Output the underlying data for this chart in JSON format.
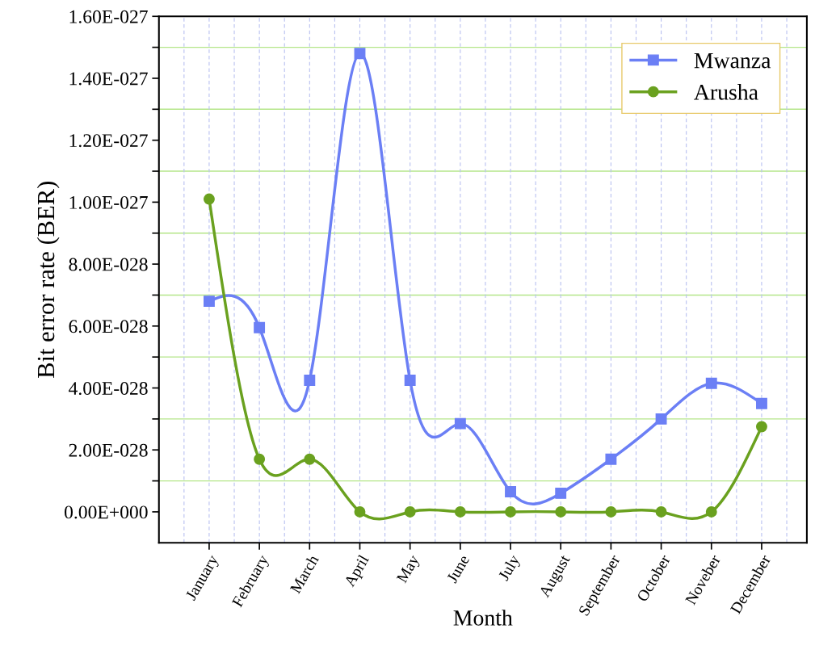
{
  "chart_data": {
    "type": "line",
    "xlabel": "Month",
    "ylabel": "Bit error rate (BER)",
    "categories": [
      "January",
      "February",
      "March",
      "April",
      "May",
      "June",
      "July",
      "August",
      "September",
      "October",
      "Noveber",
      "December"
    ],
    "series": [
      {
        "name": "Mwanza",
        "color": "#6b7ff5",
        "marker": "square",
        "values": [
          6.8e-28,
          5.95e-28,
          4.25e-28,
          1.48e-27,
          4.25e-28,
          2.85e-28,
          6.5e-29,
          6e-29,
          1.7e-28,
          3e-28,
          4.15e-28,
          3.5e-28
        ]
      },
      {
        "name": "Arusha",
        "color": "#6aa11f",
        "marker": "circle",
        "values": [
          1.01e-27,
          1.7e-28,
          1.7e-28,
          0,
          0,
          0,
          0,
          0,
          0,
          0,
          0,
          2.75e-28
        ]
      }
    ],
    "ylim": [
      -1e-28,
      1.6e-27
    ],
    "yticks": [
      {
        "value": 0,
        "label": "0.00E+000"
      },
      {
        "value": 1e-28,
        "label": null
      },
      {
        "value": 2e-28,
        "label": "2.00E-028"
      },
      {
        "value": 3e-28,
        "label": null
      },
      {
        "value": 4e-28,
        "label": "4.00E-028"
      },
      {
        "value": 5e-28,
        "label": null
      },
      {
        "value": 6e-28,
        "label": "6.00E-028"
      },
      {
        "value": 7e-28,
        "label": null
      },
      {
        "value": 8e-28,
        "label": "8.00E-028"
      },
      {
        "value": 9e-28,
        "label": null
      },
      {
        "value": 1e-27,
        "label": "1.00E-027"
      },
      {
        "value": 1.1e-27,
        "label": null
      },
      {
        "value": 1.2e-27,
        "label": "1.20E-027"
      },
      {
        "value": 1.3e-27,
        "label": null
      },
      {
        "value": 1.4e-27,
        "label": "1.40E-027"
      },
      {
        "value": 1.5e-27,
        "label": null
      },
      {
        "value": 1.6e-27,
        "label": "1.60E-027"
      }
    ],
    "grid": true,
    "legend": "top right",
    "line_style": "solid"
  }
}
